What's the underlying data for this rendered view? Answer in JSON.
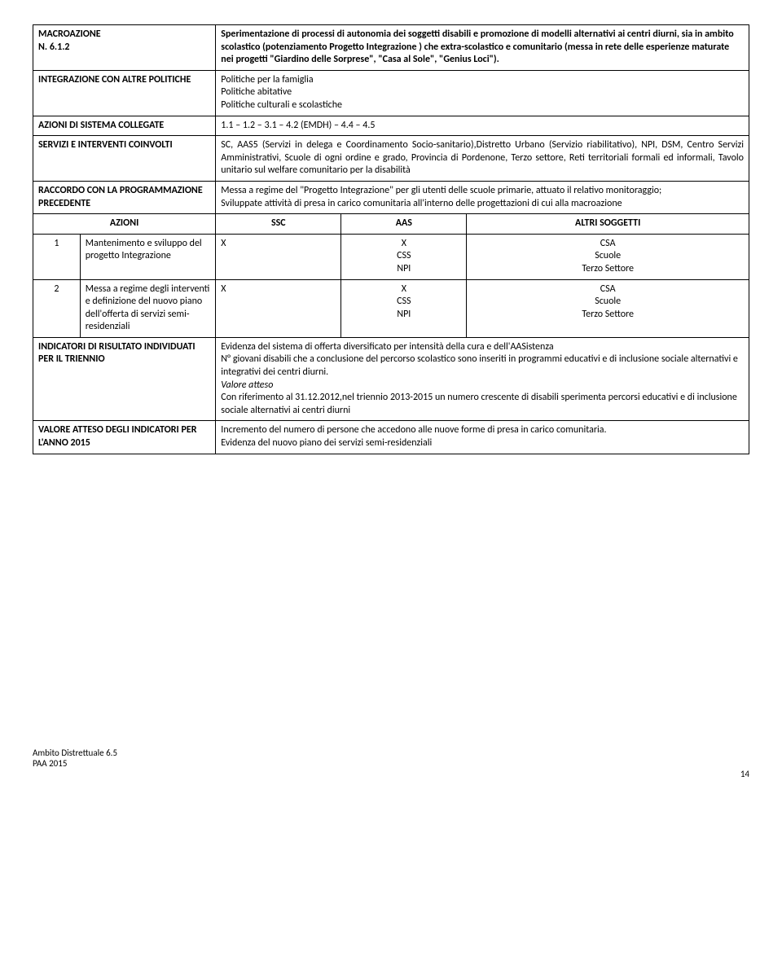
{
  "r1": {
    "label": "MACROAZIONE\nN. 6.1.2",
    "text": "Sperimentazione di processi di autonomia dei soggetti disabili e promozione di modelli alternativi ai centri diurni, sia in ambito scolastico (potenziamento Progetto Integrazione ) che extra-scolastico e comunitario (messa in rete delle esperienze maturate nei progetti \"Giardino delle Sorprese\", \"Casa al Sole\", \"Genius Loci\")."
  },
  "r2": {
    "label": "INTEGRAZIONE CON ALTRE POLITICHE",
    "l1": "Politiche per la famiglia",
    "l2": "Politiche abitative",
    "l3": "Politiche culturali e scolastiche"
  },
  "r3": {
    "label": "AZIONI DI SISTEMA COLLEGATE",
    "text": "1.1 – 1.2 – 3.1 – 4.2 (EMDH) – 4.4 – 4.5"
  },
  "r4": {
    "label": "SERVIZI E INTERVENTI COINVOLTI",
    "text": "SC, AAS5 (Servizi in delega e Coordinamento Socio-sanitario),Distretto Urbano (Servizio riabilitativo), NPI, DSM, Centro Servizi Amministrativi, Scuole di ogni ordine e grado, Provincia di Pordenone, Terzo settore, Reti territoriali formali ed informali, Tavolo unitario sul welfare comunitario per la disabilità"
  },
  "r5": {
    "label": "RACCORDO CON LA PROGRAMMAZIONE PRECEDENTE",
    "l1": "Messa a regime del \"Progetto Integrazione\" per gli utenti delle scuole primarie, attuato il relativo monitoraggio;",
    "l2": "Sviluppate attività di presa in carico comunitaria all'interno delle progettazioni di cui alla macroazione"
  },
  "hdr": {
    "azioni": "AZIONI",
    "ssc": "SSC",
    "aas": "AAS",
    "altri": "ALTRI SOGGETTI"
  },
  "row1": {
    "num": "1",
    "action": "Mantenimento e sviluppo del progetto Integrazione",
    "ssc": "X",
    "aas": "X\nCSS\nNPI",
    "altri": "CSA\nScuole\nTerzo Settore"
  },
  "row2": {
    "num": "2",
    "action": "Messa a regime degli interventi e definizione del nuovo piano dell'offerta di servizi semi-residenziali",
    "ssc": "X",
    "aas": "X\nCSS\nNPI",
    "altri": "CSA\nScuole\nTerzo Settore"
  },
  "r6": {
    "label": "INDICATORI DI RISULTATO INDIVIDUATI PER IL TRIENNIO",
    "l1": "Evidenza del sistema di offerta diversificato per intensità della cura e dell'AASistenza",
    "l2": "N° giovani disabili che a conclusione del percorso scolastico sono inseriti in programmi educativi e di inclusione sociale alternativi e integrativi dei centri diurni.",
    "l3i": "Valore atteso",
    "l4": "Con riferimento al 31.12.2012,nel triennio 2013-2015 un numero crescente di disabili sperimenta percorsi educativi e di inclusione sociale alternativi ai centri diurni"
  },
  "r7": {
    "label": "VALORE ATTESO DEGLI INDICATORI PER L'ANNO 2015",
    "l1": "Incremento del numero di persone che accedono alle nuove forme di presa in carico comunitaria.",
    "l2": "Evidenza del nuovo piano dei servizi semi-residenziali"
  },
  "footer": {
    "l1": "Ambito Distrettuale 6.5",
    "l2": "PAA 2015",
    "page": "14"
  }
}
